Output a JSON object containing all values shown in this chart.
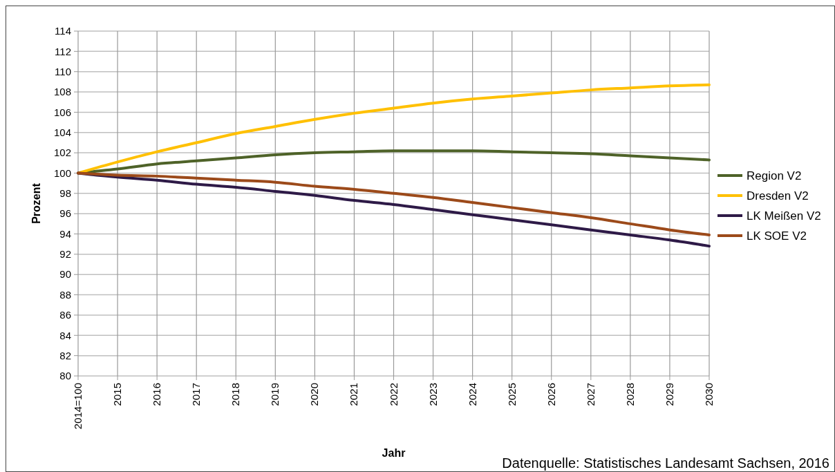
{
  "chart_data": {
    "type": "line",
    "xlabel": "Jahr",
    "ylabel": "Prozent",
    "categories": [
      "2014=100",
      "2015",
      "2016",
      "2017",
      "2018",
      "2019",
      "2020",
      "2021",
      "2022",
      "2023",
      "2024",
      "2025",
      "2026",
      "2027",
      "2028",
      "2029",
      "2030"
    ],
    "series": [
      {
        "name": "Region V2",
        "color": "#4e6228",
        "values": [
          100,
          100.4,
          100.9,
          101.2,
          101.5,
          101.8,
          102.0,
          102.1,
          102.2,
          102.2,
          102.2,
          102.1,
          102.0,
          101.9,
          101.7,
          101.5,
          101.3
        ]
      },
      {
        "name": "Dresden V2",
        "color": "#ffc000",
        "values": [
          100,
          101.1,
          102.1,
          103.0,
          103.9,
          104.6,
          105.3,
          105.9,
          106.4,
          106.9,
          107.3,
          107.6,
          107.9,
          108.2,
          108.4,
          108.6,
          108.7
        ]
      },
      {
        "name": "LK Meißen V2",
        "color": "#2e1a47",
        "values": [
          100,
          99.6,
          99.3,
          98.9,
          98.6,
          98.2,
          97.8,
          97.3,
          96.9,
          96.4,
          95.9,
          95.4,
          94.9,
          94.4,
          93.9,
          93.4,
          92.8
        ]
      },
      {
        "name": "LK SOE V2",
        "color": "#9c4a1a",
        "values": [
          100,
          99.8,
          99.7,
          99.5,
          99.3,
          99.1,
          98.7,
          98.4,
          98.0,
          97.6,
          97.1,
          96.6,
          96.1,
          95.6,
          95.0,
          94.4,
          93.9
        ]
      }
    ],
    "ylim": [
      80,
      114
    ],
    "yticks": [
      80,
      82,
      84,
      86,
      88,
      90,
      92,
      94,
      96,
      98,
      100,
      102,
      104,
      106,
      108,
      110,
      112,
      114
    ],
    "grid": true,
    "legend": "right",
    "line_style": "solid",
    "annotations": [
      "Datenquelle: Statistisches Landesamt Sachsen, 2016"
    ]
  }
}
